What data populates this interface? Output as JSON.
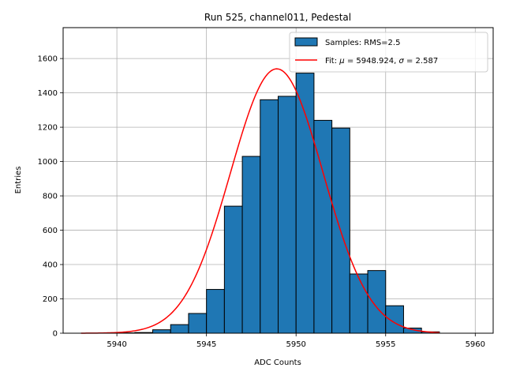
{
  "chart_data": {
    "type": "bar",
    "title": "Run 525, channel011, Pedestal",
    "xlabel": "ADC Counts",
    "ylabel": "Entries",
    "xlim": [
      5937,
      5961
    ],
    "ylim": [
      0,
      1780
    ],
    "xticks": [
      5940,
      5945,
      5950,
      5955,
      5960
    ],
    "yticks": [
      0,
      200,
      400,
      600,
      800,
      1000,
      1200,
      1400,
      1600
    ],
    "grid": true,
    "legend_position": "upper right",
    "histogram": {
      "label": "Samples: RMS=2.5",
      "color": "#1f77b4",
      "edge_color": "#000000",
      "bin_edges": [
        5938,
        5939,
        5940,
        5941,
        5942,
        5943,
        5944,
        5945,
        5946,
        5947,
        5948,
        5949,
        5950,
        5951,
        5952,
        5953,
        5954,
        5955,
        5956,
        5957,
        5958,
        5959,
        5960
      ],
      "counts": [
        0,
        0,
        2,
        4,
        20,
        50,
        115,
        255,
        740,
        1030,
        1360,
        1380,
        1515,
        1240,
        1195,
        345,
        365,
        160,
        30,
        8,
        0,
        0
      ]
    },
    "fit": {
      "label": "Fit: μ = 5948.924, σ = 2.587",
      "label_prefix": "Fit: ",
      "label_mu_symbol": "μ",
      "label_mu_value": " = 5948.924, ",
      "label_sigma_symbol": "σ",
      "label_sigma_value": " = 2.587",
      "color": "#ff0000",
      "mu": 5948.924,
      "sigma": 2.587,
      "amplitude": 1540,
      "x_range": [
        5938,
        5958
      ]
    }
  }
}
